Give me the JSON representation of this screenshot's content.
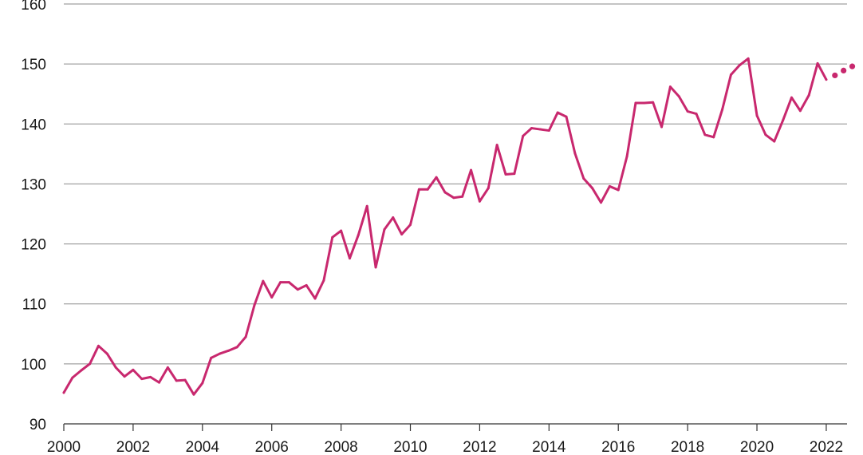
{
  "chart_data": {
    "type": "line",
    "title": "",
    "xlabel": "",
    "ylabel": "",
    "ylim": [
      90,
      160
    ],
    "xlim": [
      2000,
      2022.6
    ],
    "y_ticks": [
      90,
      100,
      110,
      120,
      130,
      140,
      150,
      160
    ],
    "x_ticks": [
      2000,
      2002,
      2004,
      2006,
      2008,
      2010,
      2012,
      2014,
      2016,
      2018,
      2020,
      2022
    ],
    "y_tick_labels": [
      "90",
      "100",
      "110",
      "120",
      "130",
      "140",
      "150",
      "160"
    ],
    "x_tick_labels": [
      "2000",
      "2002",
      "2004",
      "2006",
      "2008",
      "2010",
      "2012",
      "2014",
      "2016",
      "2018",
      "2020",
      "2022"
    ],
    "grid": "horizontal",
    "series": [
      {
        "style": "solid",
        "color": "#c8286e",
        "x": [
          2000.0,
          2000.25,
          2000.5,
          2000.75,
          2001.0,
          2001.25,
          2001.5,
          2001.75,
          2002.0,
          2002.25,
          2002.5,
          2002.75,
          2003.0,
          2003.25,
          2003.5,
          2003.75,
          2004.0,
          2004.25,
          2004.5,
          2004.75,
          2005.0,
          2005.25,
          2005.5,
          2005.75,
          2006.0,
          2006.25,
          2006.5,
          2006.75,
          2007.0,
          2007.25,
          2007.5,
          2007.75,
          2008.0,
          2008.25,
          2008.5,
          2008.75,
          2009.0,
          2009.25,
          2009.5,
          2009.75,
          2010.0,
          2010.25,
          2010.5,
          2010.75,
          2011.0,
          2011.25,
          2011.5,
          2011.75,
          2012.0,
          2012.25,
          2012.5,
          2012.75,
          2013.0,
          2013.25,
          2013.5,
          2013.75,
          2014.0,
          2014.25,
          2014.5,
          2014.75,
          2015.0,
          2015.25,
          2015.5,
          2015.75,
          2016.0,
          2016.25,
          2016.5,
          2016.75,
          2017.0,
          2017.25,
          2017.5,
          2017.75,
          2018.0,
          2018.25,
          2018.5,
          2018.75,
          2019.0,
          2019.25,
          2019.5,
          2019.75,
          2020.0,
          2020.25,
          2020.5,
          2020.75,
          2021.0,
          2021.25,
          2021.5,
          2021.75,
          2022.0
        ],
        "values": [
          95.2,
          97.7,
          98.9,
          100.0,
          103.0,
          101.7,
          99.4,
          97.9,
          99.0,
          97.5,
          97.8,
          96.9,
          99.4,
          97.2,
          97.3,
          94.9,
          96.8,
          101.0,
          101.7,
          102.2,
          102.8,
          104.5,
          109.8,
          113.8,
          111.1,
          113.6,
          113.6,
          112.4,
          113.1,
          110.9,
          113.9,
          121.1,
          122.2,
          117.6,
          121.5,
          126.3,
          116.1,
          122.4,
          124.4,
          121.6,
          123.2,
          129.1,
          129.1,
          131.1,
          128.6,
          127.7,
          127.9,
          132.3,
          127.1,
          129.3,
          136.5,
          131.6,
          131.7,
          138.0,
          139.3,
          139.1,
          138.9,
          141.9,
          141.2,
          135.1,
          130.9,
          129.3,
          126.9,
          129.6,
          129.0,
          134.6,
          143.5,
          143.5,
          143.6,
          139.5,
          146.2,
          144.6,
          142.1,
          141.7,
          138.2,
          137.8,
          142.4,
          148.2,
          149.8,
          150.9,
          141.4,
          138.2,
          137.1,
          140.6,
          144.4,
          142.2,
          144.8,
          150.1,
          147.4
        ]
      },
      {
        "style": "dotted",
        "color": "#c8286e",
        "x": [
          2022.25,
          2022.5,
          2022.75
        ],
        "values": [
          148.1,
          148.9,
          149.6
        ]
      }
    ]
  }
}
